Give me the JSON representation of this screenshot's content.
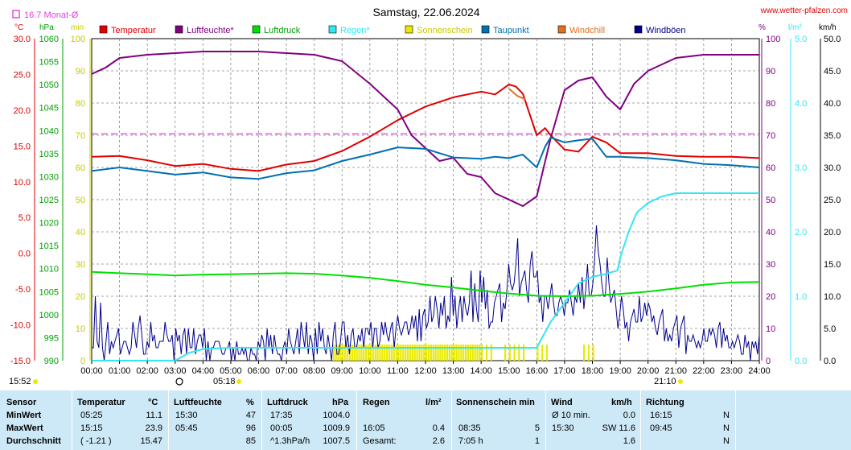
{
  "header": {
    "title": "Samstag, 22.06.2024",
    "site": "www.wetter-pfalzen.com",
    "monthly_avg": "16.7 Monat-Ø"
  },
  "axis_units": {
    "temp": "°C",
    "press": "hPa",
    "min": "min",
    "percent": "%",
    "rain": "l/m²",
    "wind": "km/h"
  },
  "times": {
    "left": "15:52",
    "sunrise": "05:18",
    "sunset": "21:10"
  },
  "colors": {
    "temperature": "#e00000",
    "humidity": "#800080",
    "pressure": "#00e000",
    "rain": "#33e6f2",
    "sunshine": "#eaea00",
    "dewpoint": "#0070b0",
    "windchill": "#e07020",
    "gusts": "#00008b",
    "avg_line": "#e040e0",
    "table_bg": "#cde9f7"
  },
  "chart_data": {
    "type": "line",
    "title": "Samstag, 22.06.2024",
    "x_range_hours": [
      0,
      24
    ],
    "x_ticks": [
      "00:00",
      "01:00",
      "02:00",
      "03:00",
      "04:00",
      "05:00",
      "06:00",
      "07:00",
      "08:00",
      "09:00",
      "10:00",
      "11:00",
      "12:00",
      "13:00",
      "14:00",
      "15:00",
      "16:00",
      "17:00",
      "18:00",
      "19:00",
      "20:00",
      "21:00",
      "22:00",
      "23:00",
      "24:00"
    ],
    "axes": {
      "temp": {
        "unit": "°C",
        "range": [
          -15,
          30
        ],
        "ticks": [
          "30.0",
          "25.0",
          "20.0",
          "15.0",
          "10.0",
          "5.0",
          "0.0",
          "-5.0",
          "-10.0",
          "-15.0"
        ]
      },
      "pressure": {
        "unit": "hPa",
        "range": [
          990,
          1060
        ],
        "ticks": [
          "1060",
          "1055",
          "1050",
          "1045",
          "1040",
          "1035",
          "1030",
          "1025",
          "1020",
          "1015",
          "1010",
          "1005",
          "1000",
          "995",
          "990"
        ]
      },
      "minutes": {
        "unit": "min",
        "range": [
          0,
          100
        ],
        "ticks": [
          "100",
          "90",
          "80",
          "70",
          "60",
          "50",
          "40",
          "30",
          "20",
          "10",
          "0"
        ]
      },
      "percent": {
        "unit": "%",
        "range": [
          0,
          100
        ],
        "ticks": [
          "100",
          "90",
          "80",
          "70",
          "60",
          "50",
          "40",
          "30",
          "20",
          "10",
          "0"
        ]
      },
      "rain": {
        "unit": "l/m²",
        "range": [
          0,
          5
        ],
        "ticks": [
          "5.0",
          "4.0",
          "3.0",
          "2.0",
          "1.0",
          "0.0"
        ]
      },
      "wind": {
        "unit": "km/h",
        "range": [
          0,
          50
        ],
        "ticks": [
          "50.0",
          "45.0",
          "40.0",
          "35.0",
          "30.0",
          "25.0",
          "20.0",
          "15.0",
          "10.0",
          "5.0",
          "0.0"
        ]
      }
    },
    "monthly_avg_temp": 16.7,
    "legend": [
      "Temperatur",
      "Luftfeuchte*",
      "Luftdruck",
      "Regen*",
      "Sonnenschein",
      "Taupunkt",
      "Windchill",
      "Windböen"
    ],
    "series": [
      {
        "name": "Temperatur",
        "axis": "temp",
        "x": [
          0,
          1,
          2,
          3,
          4,
          5,
          6,
          7,
          8,
          9,
          10,
          11,
          12,
          13,
          14,
          14.5,
          15,
          15.25,
          15.5,
          16,
          16.3,
          16.5,
          17,
          17.5,
          18,
          18.5,
          19,
          20,
          21,
          22,
          23,
          24
        ],
        "y": [
          13.5,
          13.6,
          13.0,
          12.2,
          12.5,
          11.8,
          11.5,
          12.4,
          12.9,
          14.3,
          16.3,
          18.6,
          20.5,
          21.8,
          22.6,
          22.2,
          23.6,
          23.3,
          22.3,
          16.5,
          17.5,
          16.5,
          14.5,
          14.2,
          16.3,
          15.5,
          14.0,
          14.0,
          13.6,
          13.5,
          13.5,
          13.3
        ]
      },
      {
        "name": "Luftfeuchte*",
        "axis": "percent",
        "x": [
          0,
          0.5,
          1,
          2,
          3,
          4,
          5,
          6,
          7,
          8,
          9,
          10,
          11,
          11.5,
          12,
          12.5,
          13,
          13.5,
          14,
          14.5,
          15,
          15.5,
          16,
          16.5,
          17,
          17.5,
          18,
          18.5,
          19,
          19.5,
          20,
          21,
          22,
          23,
          24
        ],
        "y": [
          89,
          91,
          94,
          95,
          95.5,
          96,
          96,
          96,
          95.5,
          95,
          93,
          86,
          78,
          70,
          66,
          62,
          63,
          58,
          57,
          52,
          50,
          48,
          51,
          69,
          84,
          87,
          88,
          82,
          78,
          86,
          90,
          94,
          95,
          95,
          95
        ]
      },
      {
        "name": "Luftdruck",
        "axis": "pressure",
        "x": [
          0,
          1,
          2,
          3,
          4,
          5,
          6,
          7,
          8,
          9,
          10,
          11,
          12,
          13,
          14,
          15,
          16,
          17,
          18,
          19,
          20,
          21,
          22,
          23,
          24
        ],
        "y": [
          1009.3,
          1009.0,
          1008.8,
          1008.5,
          1008.7,
          1008.8,
          1008.9,
          1009.0,
          1008.9,
          1008.5,
          1008.0,
          1007.3,
          1006.5,
          1005.9,
          1005.2,
          1004.6,
          1004.1,
          1004.0,
          1004.1,
          1004.5,
          1005.0,
          1005.7,
          1006.5,
          1007.0,
          1007.1
        ]
      },
      {
        "name": "Regen*",
        "axis": "rain",
        "x": [
          0,
          3,
          3.5,
          4,
          5,
          6,
          7,
          8,
          9,
          10,
          11,
          12,
          13,
          14,
          15,
          15.8,
          16,
          16.5,
          17,
          17.5,
          18,
          18.5,
          18.9,
          19,
          19.3,
          19.6,
          20,
          20.5,
          21,
          22,
          23,
          24
        ],
        "y": [
          0,
          0,
          0.12,
          0.18,
          0.2,
          0.2,
          0.2,
          0.2,
          0.2,
          0.2,
          0.2,
          0.2,
          0.2,
          0.2,
          0.2,
          0.2,
          0.2,
          0.6,
          0.9,
          1.2,
          1.3,
          1.35,
          1.4,
          1.6,
          2.0,
          2.3,
          2.45,
          2.55,
          2.6,
          2.6,
          2.6,
          2.6
        ]
      },
      {
        "name": "Taupunkt",
        "axis": "temp",
        "x": [
          0,
          1,
          2,
          3,
          4,
          5,
          6,
          7,
          8,
          9,
          10,
          11,
          12,
          13,
          14,
          14.5,
          15,
          15.5,
          16,
          16.3,
          16.5,
          17,
          17.5,
          18,
          18.5,
          19,
          20,
          21,
          22,
          23,
          24
        ],
        "y": [
          11.5,
          12.0,
          11.5,
          11.0,
          11.3,
          10.6,
          10.4,
          11.2,
          11.6,
          12.9,
          13.8,
          14.8,
          14.6,
          13.4,
          13.2,
          13.5,
          13.3,
          13.8,
          12.0,
          14.9,
          16.2,
          15.5,
          15.8,
          16.0,
          13.5,
          13.5,
          13.3,
          13.0,
          12.5,
          12.3,
          12.0
        ]
      },
      {
        "name": "Windchill",
        "axis": "temp",
        "x": [
          15.0,
          15.3,
          15.6
        ],
        "y": [
          23.0,
          22.0,
          21.5
        ]
      }
    ],
    "gusts_kmh": [
      2,
      2,
      10,
      3,
      2,
      9,
      2,
      0,
      3,
      6,
      1,
      3,
      2,
      3,
      4,
      5,
      1,
      2,
      3,
      3,
      2,
      1,
      2,
      6,
      4,
      2,
      5,
      7,
      4,
      1,
      1,
      3,
      2,
      6,
      3,
      4,
      2,
      2,
      3,
      3,
      3,
      6,
      4,
      3,
      3,
      4,
      0,
      5,
      3,
      4,
      1,
      4,
      5,
      1,
      5,
      2,
      2,
      5,
      1,
      3,
      4,
      4,
      2,
      5,
      0,
      3,
      0,
      2,
      2,
      3,
      3,
      3,
      2,
      1,
      1,
      2,
      2,
      3,
      0,
      2,
      0,
      3,
      1,
      1,
      2,
      1,
      2,
      0,
      0,
      2,
      1,
      1,
      0,
      3,
      2,
      4,
      3,
      0,
      5,
      2,
      4,
      1,
      4,
      2,
      1,
      1,
      0,
      2,
      3,
      1,
      5,
      3,
      2,
      1,
      3,
      5,
      1,
      6,
      4,
      2,
      6,
      1,
      4,
      3,
      0,
      5,
      1,
      6,
      3,
      5,
      2,
      1,
      4,
      2,
      0,
      4,
      6,
      1,
      1,
      3,
      6,
      6,
      2,
      4,
      1,
      4,
      5,
      2,
      2,
      4,
      3,
      5,
      2,
      5,
      5,
      4,
      6,
      2,
      5,
      5,
      2,
      3,
      6,
      4,
      6,
      4,
      3,
      5,
      6,
      2,
      5,
      7,
      5,
      4,
      5,
      6,
      6,
      4,
      5,
      7,
      5,
      7,
      3,
      8,
      3,
      7,
      8,
      5,
      6,
      10,
      6,
      7,
      10,
      8,
      5,
      9,
      7,
      10,
      5,
      7,
      6,
      13,
      7,
      10,
      5,
      8,
      10,
      6,
      10,
      8,
      7,
      9,
      14,
      6,
      12,
      8,
      6,
      14,
      9,
      13,
      8,
      11,
      5,
      6,
      6,
      9,
      10,
      11,
      12,
      6,
      9,
      8,
      11,
      15,
      12,
      11,
      12,
      15,
      19,
      10,
      12,
      13,
      14,
      11,
      9,
      15,
      17,
      13,
      13,
      14,
      9,
      10,
      6,
      10,
      10,
      8,
      10,
      12,
      9,
      7,
      7,
      9,
      10,
      9,
      7,
      9,
      9,
      11,
      9,
      7,
      10,
      9,
      12,
      9,
      13,
      8,
      11,
      15,
      10,
      10,
      12,
      16,
      21,
      17,
      15,
      12,
      10,
      10,
      16,
      12,
      9,
      10,
      11,
      8,
      5,
      7,
      10,
      8,
      5,
      6,
      3,
      6,
      7,
      8,
      6,
      6,
      10,
      6,
      7,
      9,
      7,
      9,
      8,
      6,
      7,
      5,
      4,
      6,
      7,
      8,
      3,
      5,
      3,
      4,
      3,
      5,
      6,
      7,
      2,
      5,
      6,
      7,
      1,
      4,
      3,
      3,
      4,
      3,
      2,
      3,
      2,
      3,
      5,
      3,
      3,
      5,
      4,
      5,
      4,
      2,
      5,
      6,
      2,
      5,
      3,
      4,
      2,
      2,
      3,
      2,
      3,
      4,
      3,
      1,
      1,
      4,
      2,
      3,
      0,
      3,
      2,
      3,
      1,
      4
    ],
    "sunshine_minutes": [
      0,
      0,
      0,
      0,
      0,
      0,
      0,
      0,
      0,
      0,
      0,
      0,
      0,
      0,
      0,
      0,
      0,
      0,
      0,
      0,
      0,
      0,
      0,
      0,
      0,
      0,
      0,
      0,
      0,
      0,
      0,
      0,
      0,
      0,
      0,
      0,
      0,
      0,
      0,
      0,
      0,
      0,
      0,
      0,
      0,
      0,
      0,
      0,
      0,
      0,
      0,
      0,
      0,
      0,
      0,
      0,
      0,
      0,
      0,
      0,
      0,
      0,
      0,
      0,
      0,
      0,
      0,
      0,
      0,
      0,
      0,
      0,
      0,
      0,
      0,
      0,
      0,
      0,
      0,
      0,
      0,
      0,
      0,
      0,
      0,
      0,
      0,
      0,
      0,
      0,
      0,
      0,
      0,
      0,
      0,
      0,
      0,
      0,
      0,
      0,
      0,
      0,
      0,
      0,
      0,
      0,
      0,
      0,
      0,
      0,
      0,
      0,
      0,
      0,
      0,
      0,
      0,
      0,
      0,
      0,
      0,
      0,
      0,
      0,
      0,
      0,
      0,
      0,
      0,
      0,
      0,
      0,
      0,
      0,
      0,
      0,
      0,
      0,
      0,
      0,
      0,
      0,
      0,
      0,
      0,
      0,
      0,
      0,
      0,
      0,
      0,
      0,
      0,
      0,
      0,
      0,
      0,
      0,
      0,
      0,
      0,
      0,
      0,
      0,
      0,
      0,
      0,
      0,
      0,
      0,
      0,
      0,
      0,
      0,
      0,
      0,
      0,
      0,
      0,
      0,
      0,
      0,
      0,
      0,
      0,
      0,
      0,
      0,
      0,
      0,
      0,
      0,
      0,
      0,
      0,
      0,
      0,
      0,
      0,
      0,
      0,
      0,
      0,
      0,
      0,
      0,
      0,
      0,
      0,
      0,
      0,
      0,
      0,
      0,
      0,
      0,
      0,
      0,
      0,
      0,
      0,
      0,
      0,
      0,
      0,
      0,
      0,
      0,
      0,
      0,
      0,
      0,
      0,
      0,
      0,
      0,
      0,
      0,
      0,
      0,
      0,
      0,
      0,
      0,
      0,
      0,
      0,
      0,
      0,
      0,
      0,
      0,
      0,
      0,
      0,
      0,
      0,
      0,
      0,
      0,
      0,
      0,
      0,
      0,
      0,
      0,
      0,
      0,
      0,
      0,
      0,
      0,
      0,
      0,
      0,
      0,
      0,
      0,
      0,
      0,
      0,
      0,
      0,
      0,
      0,
      0,
      0,
      0,
      0,
      0,
      0,
      0,
      0,
      0,
      0,
      0,
      0,
      0,
      0,
      0,
      0,
      0,
      0,
      0,
      0,
      0,
      0,
      0,
      0,
      0,
      0,
      0,
      0,
      0,
      0,
      0,
      0,
      0,
      0,
      0,
      0,
      0,
      0,
      0,
      0,
      0,
      0,
      0,
      0,
      0,
      0,
      0,
      0,
      0,
      0,
      0,
      0,
      0,
      0,
      0,
      0,
      0,
      0,
      0,
      0,
      0,
      0,
      0,
      0,
      0
    ]
  },
  "table": {
    "headers": {
      "sensor": "Sensor",
      "temp": "Temperatur",
      "temp_unit": "°C",
      "hum": "Luftfeuchte",
      "hum_unit": "%",
      "press": "Luftdruck",
      "press_unit": "hPa",
      "rain": "Regen",
      "rain_unit": "l/m²",
      "sun": "Sonnenschein min",
      "wind": "Wind",
      "wind_unit": "km/h",
      "dir": "Richtung"
    },
    "rows": [
      {
        "label": "MinWert",
        "temp_time": "05:25",
        "temp_val": "11.1",
        "hum_time": "15:30",
        "hum_val": "47",
        "press_time": "17:35",
        "press_val": "1004.0",
        "rain_time": "",
        "rain_val": "",
        "sun_time": "",
        "sun_val": "",
        "wind_time": "Ø 10 min.",
        "wind_val": "0.0",
        "dir_time": "16:15",
        "dir_val": "N"
      },
      {
        "label": "MaxWert",
        "temp_time": "15:15",
        "temp_val": "23.9",
        "hum_time": "05:45",
        "hum_val": "96",
        "press_time": "00:05",
        "press_val": "1009.9",
        "rain_time": "16:05",
        "rain_val": "0.4",
        "sun_time": "08:35",
        "sun_val": "5",
        "wind_time": "15:30",
        "wind_val": "SW 11.6",
        "dir_time": "09:45",
        "dir_val": "N"
      },
      {
        "label": "Durchschnitt",
        "temp_time": "( -1.21 )",
        "temp_val": "15.47",
        "hum_time": "",
        "hum_val": "85",
        "press_time": "^1.3hPa/h",
        "press_val": "1007.5",
        "rain_time": "Gesamt:",
        "rain_val": "2.6",
        "sun_time": "7:05 h",
        "sun_val": "1",
        "wind_time": "",
        "wind_val": "1.6",
        "dir_time": "",
        "dir_val": "N"
      }
    ]
  }
}
